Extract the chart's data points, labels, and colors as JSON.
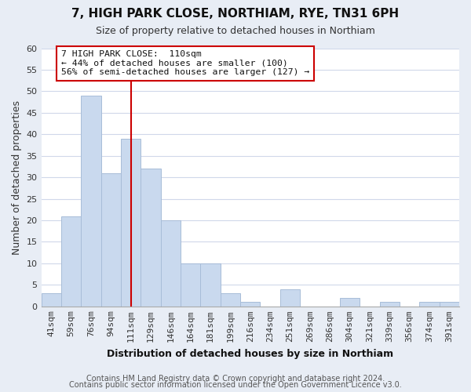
{
  "title": "7, HIGH PARK CLOSE, NORTHIAM, RYE, TN31 6PH",
  "subtitle": "Size of property relative to detached houses in Northiam",
  "xlabel": "Distribution of detached houses by size in Northiam",
  "ylabel": "Number of detached properties",
  "bar_labels": [
    "41sqm",
    "59sqm",
    "76sqm",
    "94sqm",
    "111sqm",
    "129sqm",
    "146sqm",
    "164sqm",
    "181sqm",
    "199sqm",
    "216sqm",
    "234sqm",
    "251sqm",
    "269sqm",
    "286sqm",
    "304sqm",
    "321sqm",
    "339sqm",
    "356sqm",
    "374sqm",
    "391sqm"
  ],
  "bar_values": [
    3,
    21,
    49,
    31,
    39,
    32,
    20,
    10,
    10,
    3,
    1,
    0,
    4,
    0,
    0,
    2,
    0,
    1,
    0,
    1,
    1
  ],
  "bar_color": "#c9d9ee",
  "bar_edge_color": "#a8bdd8",
  "vline_x_index": 4,
  "vline_color": "#cc0000",
  "ylim": [
    0,
    60
  ],
  "yticks": [
    0,
    5,
    10,
    15,
    20,
    25,
    30,
    35,
    40,
    45,
    50,
    55,
    60
  ],
  "annotation_title": "7 HIGH PARK CLOSE:  110sqm",
  "annotation_line1": "← 44% of detached houses are smaller (100)",
  "annotation_line2": "56% of semi-detached houses are larger (127) →",
  "annotation_box_facecolor": "#ffffff",
  "annotation_box_edgecolor": "#cc0000",
  "footer1": "Contains HM Land Registry data © Crown copyright and database right 2024.",
  "footer2": "Contains public sector information licensed under the Open Government Licence v3.0.",
  "grid_color": "#d0d8ea",
  "figure_facecolor": "#e8edf5",
  "axes_facecolor": "#ffffff",
  "title_fontsize": 11,
  "subtitle_fontsize": 9,
  "ylabel_fontsize": 9,
  "xlabel_fontsize": 9,
  "tick_fontsize": 8,
  "footer_fontsize": 7
}
